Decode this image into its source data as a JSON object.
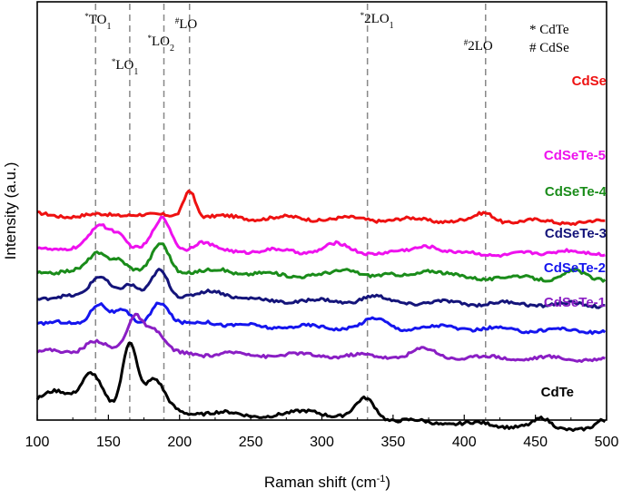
{
  "chart_data": {
    "type": "line",
    "title": "",
    "xlabel": "Raman shift (cm",
    "xlabel_sup": "-1",
    "xlabel_end": ")",
    "ylabel": "Intensity (a.u.)",
    "xlim": [
      100,
      500
    ],
    "x_ticks": [
      100,
      150,
      200,
      250,
      300,
      350,
      400,
      450,
      500
    ],
    "y_ticks_shown": false,
    "reference_lines": [
      {
        "x": 141,
        "label": "TO",
        "sub": "1",
        "marker": "*"
      },
      {
        "x": 165,
        "label": "LO",
        "sub": "1",
        "marker": "*"
      },
      {
        "x": 189,
        "label": "LO",
        "sub": "2",
        "marker": "*"
      },
      {
        "x": 207,
        "label": "LO",
        "sub": "",
        "marker": "#"
      },
      {
        "x": 332,
        "label": "2LO",
        "sub": "1",
        "marker": "*"
      },
      {
        "x": 415,
        "label": "2LO",
        "sub": "",
        "marker": "#"
      }
    ],
    "legend_notes": [
      "* CdTe",
      "# CdSe"
    ],
    "series": [
      {
        "name": "CdSe",
        "color": "#ee1111",
        "offset": 8.7,
        "peaks": [
          [
            207,
            1.2,
            4
          ],
          [
            168,
            0.12,
            8
          ],
          [
            415,
            0.3,
            6
          ]
        ]
      },
      {
        "name": "CdSeTe-5",
        "color": "#ee11ee",
        "offset": 7.3,
        "peaks": [
          [
            143,
            0.9,
            6
          ],
          [
            156,
            0.7,
            6
          ],
          [
            188,
            1.3,
            6
          ],
          [
            215,
            0.3,
            6
          ],
          [
            310,
            0.3,
            8
          ],
          [
            375,
            0.35,
            8
          ],
          [
            470,
            0.25,
            8
          ]
        ]
      },
      {
        "name": "CdSeTe-4",
        "color": "#1a8c1a",
        "offset": 6.3,
        "peaks": [
          [
            142,
            0.8,
            6
          ],
          [
            156,
            0.6,
            6
          ],
          [
            187,
            1.3,
            6
          ],
          [
            230,
            0.2,
            8
          ],
          [
            320,
            0.25,
            8
          ],
          [
            375,
            0.3,
            8
          ],
          [
            477,
            0.3,
            6
          ]
        ]
      },
      {
        "name": "CdSeTe-3",
        "color": "#14147a",
        "offset": 5.2,
        "peaks": [
          [
            144,
            1.0,
            7
          ],
          [
            165,
            0.5,
            6
          ],
          [
            186,
            1.3,
            6
          ],
          [
            225,
            0.4,
            10
          ],
          [
            335,
            0.2,
            8
          ]
        ]
      },
      {
        "name": "CdSeTe-2",
        "color": "#1515ee",
        "offset": 4.1,
        "peaks": [
          [
            143,
            0.9,
            6
          ],
          [
            160,
            0.5,
            6
          ],
          [
            186,
            1.0,
            6
          ],
          [
            220,
            0.2,
            8
          ],
          [
            338,
            0.35,
            8
          ],
          [
            390,
            0.1,
            8
          ]
        ]
      },
      {
        "name": "CdSeTe-1",
        "color": "#8a1ec4",
        "offset": 2.9,
        "peaks": [
          [
            140,
            0.5,
            7
          ],
          [
            169,
            1.6,
            6
          ],
          [
            183,
            0.9,
            6
          ],
          [
            372,
            0.3,
            8
          ]
        ]
      },
      {
        "name": "CdTe",
        "color": "#000000",
        "offset": 0.6,
        "peaks": [
          [
            115,
            0.7,
            10
          ],
          [
            138,
            1.4,
            7
          ],
          [
            165,
            2.9,
            5
          ],
          [
            182,
            1.3,
            7
          ],
          [
            293,
            0.3,
            10
          ],
          [
            331,
            0.9,
            7
          ],
          [
            455,
            0.3,
            5
          ],
          [
            497,
            0.3,
            4
          ]
        ]
      }
    ]
  }
}
